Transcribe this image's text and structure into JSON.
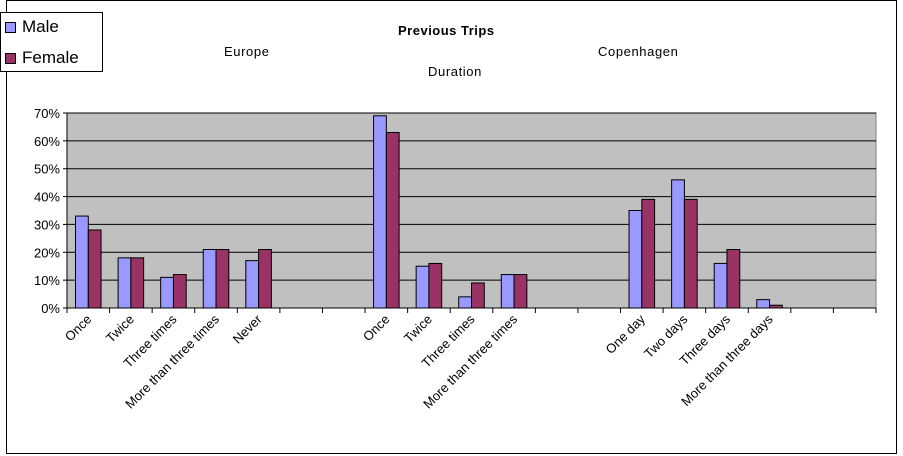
{
  "chart_data": {
    "type": "bar",
    "title": "Previous Trips",
    "group_labels": [
      {
        "name": "europe",
        "label": "Europe"
      },
      {
        "name": "duration",
        "label": "Duration"
      },
      {
        "name": "copenhagen",
        "label": "Copenhagen"
      }
    ],
    "categories": [
      "Once",
      "Twice",
      "Three times",
      "More than three times",
      "Never",
      "",
      "",
      "Once",
      "Twice",
      "Three times",
      "More than three times",
      "",
      "",
      "One day",
      "Two days",
      "Three days",
      "More than three days",
      "",
      ""
    ],
    "series": [
      {
        "name": "Male",
        "color": "#9999ff",
        "values": [
          33,
          18,
          11,
          21,
          17,
          null,
          null,
          69,
          15,
          4,
          12,
          null,
          null,
          35,
          46,
          16,
          3,
          null,
          null
        ]
      },
      {
        "name": "Female",
        "color": "#993366",
        "values": [
          28,
          18,
          12,
          21,
          21,
          null,
          null,
          63,
          16,
          9,
          12,
          null,
          null,
          39,
          39,
          21,
          1,
          null,
          null
        ]
      }
    ],
    "ylim": [
      0,
      70
    ],
    "yticks": [
      0,
      10,
      20,
      30,
      40,
      50,
      60,
      70
    ],
    "ytick_labels": [
      "0%",
      "10%",
      "20%",
      "30%",
      "40%",
      "50%",
      "60%",
      "70%"
    ],
    "grid": true,
    "plot_background": "#c0c0c0",
    "legend": "top-left"
  }
}
